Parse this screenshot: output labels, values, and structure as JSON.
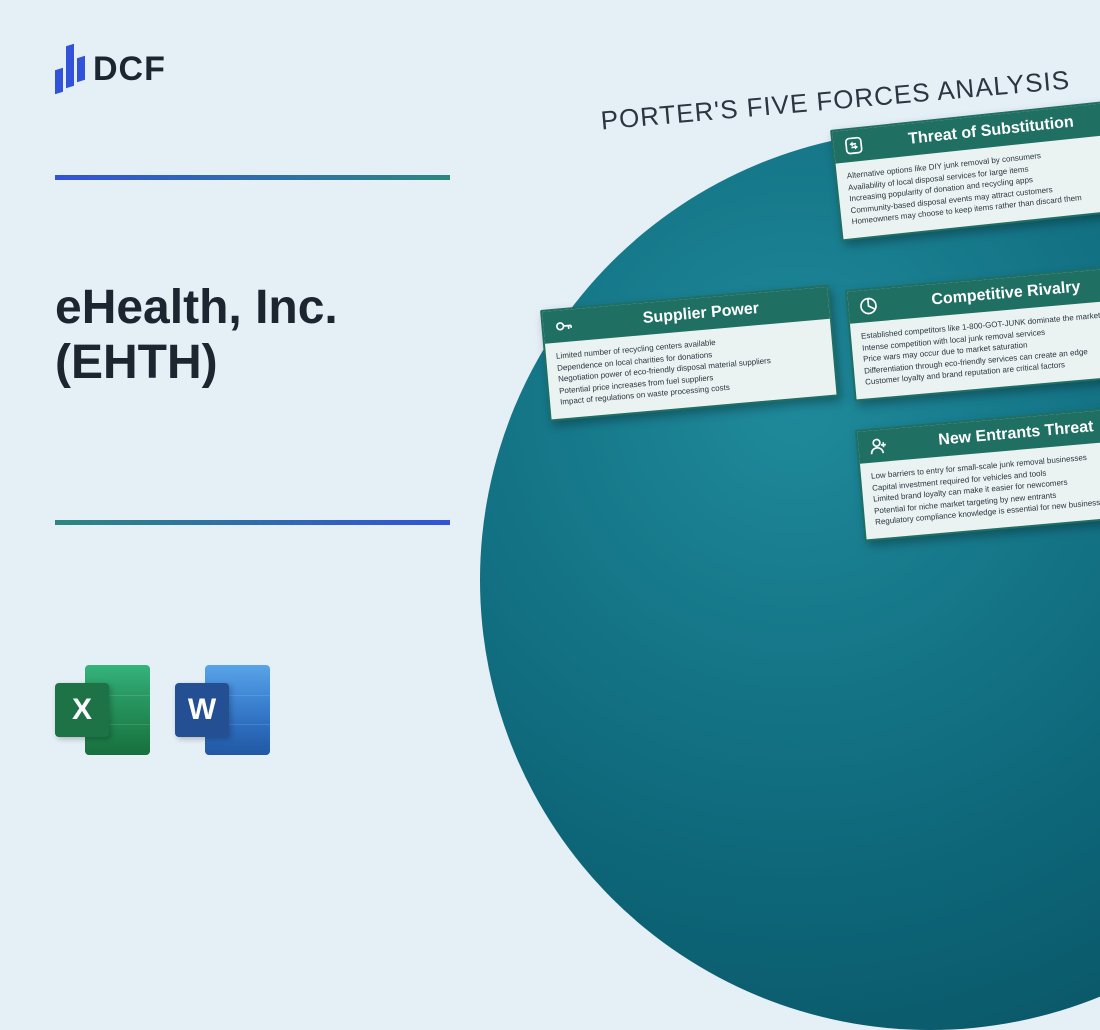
{
  "logo_text": "DCF",
  "title_line1": "eHealth, Inc.",
  "title_line2": "(EHTH)",
  "diagram_heading": "PORTER'S FIVE FORCES ANALYSIS",
  "colors": {
    "page_bg": "#e5eff6",
    "logo_blue": "#3252d9",
    "divider_start": "#3252d9",
    "divider_end": "#2d877f",
    "circle_gradient": [
      "#1f8a9b",
      "#0d6779",
      "#084d5c"
    ],
    "card_header": "#1f6f63",
    "card_body_bg": "#eaf3f2",
    "excel_front": "#1e7346",
    "word_front": "#244f92",
    "text_dark": "#1d2530"
  },
  "icons": {
    "excel_letter": "X",
    "word_letter": "W"
  },
  "cards": {
    "substitution": {
      "title": "Threat of Substitution",
      "points": [
        "Alternative options like DIY junk removal by consumers",
        "Availability of local disposal services for large items",
        "Increasing popularity of donation and recycling apps",
        "Community-based disposal events may attract customers",
        "Homeowners may choose to keep items rather than discard them"
      ]
    },
    "supplier": {
      "title": "Supplier Power",
      "points": [
        "Limited number of recycling centers available",
        "Dependence on local charities for donations",
        "Negotiation power of eco-friendly disposal material suppliers",
        "Potential price increases from fuel suppliers",
        "Impact of regulations on waste processing costs"
      ]
    },
    "rivalry": {
      "title": "Competitive Rivalry",
      "points": [
        "Established competitors like 1-800-GOT-JUNK dominate the market",
        "Intense competition with local junk removal services",
        "Price wars may occur due to market saturation",
        "Differentiation through eco-friendly services can create an edge",
        "Customer loyalty and brand reputation are critical factors"
      ]
    },
    "entrants": {
      "title": "New Entrants Threat",
      "points": [
        "Low barriers to entry for small-scale junk removal businesses",
        "Capital investment required for vehicles and tools",
        "Limited brand loyalty can make it easier for newcomers",
        "Potential for niche market targeting by new entrants",
        "Regulatory compliance knowledge is essential for new businesses"
      ]
    }
  }
}
